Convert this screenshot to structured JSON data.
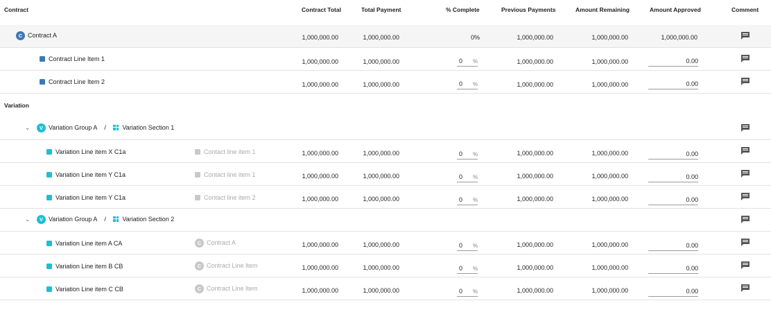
{
  "headers": {
    "contract": "Contract",
    "contract_total": "Contract Total",
    "total_payment": "Total Payment",
    "pct_complete": "% Complete",
    "previous_payments": "Previous Payments",
    "amount_remaining": "Amount Remaining",
    "amount_approved": "Amount Approved",
    "comment": "Comment"
  },
  "contract_row": {
    "badge": "C",
    "name": "Contract A",
    "contract_total": "1,000,000.00",
    "total_payment": "1,000,000.00",
    "pct_complete": "0%",
    "previous_payments": "1,000,000.00",
    "amount_remaining": "1,000,000.00",
    "amount_approved": "1,000,000.00"
  },
  "contract_lines": [
    {
      "name": "Contract Line Item 1",
      "contract_total": "1,000,000.00",
      "total_payment": "1,000,000.00",
      "pct": "0",
      "pct_sign": "%",
      "previous_payments": "1,000,000.00",
      "amount_remaining": "1,000,000.00",
      "amount_approved": "0.00"
    },
    {
      "name": "Contract Line Item 2",
      "contract_total": "1,000,000.00",
      "total_payment": "1,000,000.00",
      "pct": "0",
      "pct_sign": "%",
      "previous_payments": "1,000,000.00",
      "amount_remaining": "1,000,000.00",
      "amount_approved": "0.00"
    }
  ],
  "variation_title": "Variation",
  "groups": [
    {
      "badge": "V",
      "group": "Variation Group A",
      "sep": "/",
      "section": "Variation Section 1",
      "lines": [
        {
          "name": "Variation Line item X C1a",
          "ref": "Contact line item 1",
          "contract_total": "1,000,000.00",
          "total_payment": "1,000,000.00",
          "pct": "0",
          "pct_sign": "%",
          "previous_payments": "1,000,000.00",
          "amount_remaining": "1,000,000.00",
          "amount_approved": "0.00"
        },
        {
          "name": "Variation Line item Y C1a",
          "ref": "Contact line item 1",
          "contract_total": "1,000,000.00",
          "total_payment": "1,000,000.00",
          "pct": "0",
          "pct_sign": "%",
          "previous_payments": "1,000,000.00",
          "amount_remaining": "1,000,000.00",
          "amount_approved": "0.00"
        },
        {
          "name": "Variation Line item Y C1a",
          "ref": "Contact line item 2",
          "contract_total": "1,000,000.00",
          "total_payment": "1,000,000.00",
          "pct": "0",
          "pct_sign": "%",
          "previous_payments": "1,000,000.00",
          "amount_remaining": "1,000,000.00",
          "amount_approved": "0.00"
        }
      ]
    },
    {
      "badge": "V",
      "group": "Variation Group A",
      "sep": "/",
      "section": "Variation Section 2",
      "lines": [
        {
          "name": "Variation Line item A CA",
          "ref_badge": "C",
          "ref": "Contract A",
          "contract_total": "1,000,000.00",
          "total_payment": "1,000,000.00",
          "pct": "0",
          "pct_sign": "%",
          "previous_payments": "1,000,000.00",
          "amount_remaining": "1,000,000.00",
          "amount_approved": "0.00"
        },
        {
          "name": "Variation Line item B CB",
          "ref_badge": "C",
          "ref": "Contract Line Item",
          "contract_total": "1,000,000.00",
          "total_payment": "1,000,000.00",
          "pct": "0",
          "pct_sign": "%",
          "previous_payments": "1,000,000.00",
          "amount_remaining": "1,000,000.00",
          "amount_approved": "0.00"
        },
        {
          "name": "Variation Line item C CB",
          "ref_badge": "C",
          "ref": "Contract Line Item",
          "contract_total": "1,000,000.00",
          "total_payment": "1,000,000.00",
          "pct": "0",
          "pct_sign": "%",
          "previous_payments": "1,000,000.00",
          "amount_remaining": "1,000,000.00",
          "amount_approved": "0.00"
        }
      ]
    }
  ],
  "icons": {
    "comment": "comment-icon",
    "chevron": "chevron-down-icon",
    "section": "section-grid-icon"
  }
}
